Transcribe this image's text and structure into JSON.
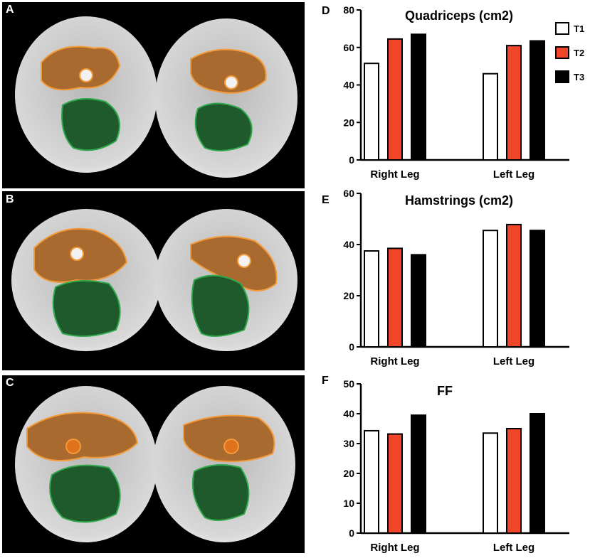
{
  "mri_panels": [
    {
      "label": "A"
    },
    {
      "label": "B"
    },
    {
      "label": "C"
    }
  ],
  "legend": [
    {
      "label": "T1",
      "color": "#ffffff"
    },
    {
      "label": "T2",
      "color": "#f0462a"
    },
    {
      "label": "T3",
      "color": "#000000"
    }
  ],
  "chart_data": [
    {
      "panel": "D",
      "type": "bar",
      "title": "Quadriceps (cm2)",
      "categories": [
        "Right Leg",
        "Left Leg"
      ],
      "series": [
        {
          "name": "T1",
          "values": [
            51.5,
            46
          ]
        },
        {
          "name": "T2",
          "values": [
            64.5,
            61
          ]
        },
        {
          "name": "T3",
          "values": [
            67,
            63.5
          ]
        }
      ],
      "ylim": [
        0,
        80
      ],
      "yticks": [
        0,
        20,
        40,
        60,
        80
      ]
    },
    {
      "panel": "E",
      "type": "bar",
      "title": "Hamstrings (cm2)",
      "categories": [
        "Right Leg",
        "Left Leg"
      ],
      "series": [
        {
          "name": "T1",
          "values": [
            37.5,
            45.5
          ]
        },
        {
          "name": "T2",
          "values": [
            38.5,
            47.8
          ]
        },
        {
          "name": "T3",
          "values": [
            36,
            45.5
          ]
        }
      ],
      "ylim": [
        0,
        60
      ],
      "yticks": [
        0,
        20,
        40,
        60
      ]
    },
    {
      "panel": "F",
      "type": "bar",
      "title": "FF",
      "categories": [
        "Right Leg",
        "Left Leg"
      ],
      "series": [
        {
          "name": "T1",
          "values": [
            34.3,
            33.5
          ]
        },
        {
          "name": "T2",
          "values": [
            33.2,
            35
          ]
        },
        {
          "name": "T3",
          "values": [
            39.5,
            40
          ]
        }
      ],
      "ylim": [
        0,
        50
      ],
      "yticks": [
        0,
        10,
        20,
        30,
        40,
        50
      ]
    }
  ]
}
